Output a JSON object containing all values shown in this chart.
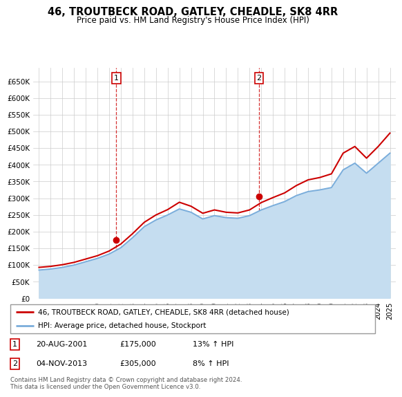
{
  "title": "46, TROUTBECK ROAD, GATLEY, CHEADLE, SK8 4RR",
  "subtitle": "Price paid vs. HM Land Registry's House Price Index (HPI)",
  "ylabel_ticks": [
    "£0",
    "£50K",
    "£100K",
    "£150K",
    "£200K",
    "£250K",
    "£300K",
    "£350K",
    "£400K",
    "£450K",
    "£500K",
    "£550K",
    "£600K",
    "£650K"
  ],
  "ytick_values": [
    0,
    50000,
    100000,
    150000,
    200000,
    250000,
    300000,
    350000,
    400000,
    450000,
    500000,
    550000,
    600000,
    650000
  ],
  "ylim": [
    0,
    690000
  ],
  "transaction1": {
    "date_idx": 6.6,
    "price": 175000,
    "label": "1",
    "date_str": "20-AUG-2001",
    "pct": "13% ↑ HPI"
  },
  "transaction2": {
    "date_idx": 18.8,
    "price": 305000,
    "label": "2",
    "date_str": "04-NOV-2013",
    "pct": "8% ↑ HPI"
  },
  "red_color": "#cc0000",
  "blue_color": "#7aaddb",
  "blue_fill": "#c5ddf0",
  "background_color": "#ffffff",
  "grid_color": "#cccccc",
  "legend_line1": "46, TROUTBECK ROAD, GATLEY, CHEADLE, SK8 4RR (detached house)",
  "legend_line2": "HPI: Average price, detached house, Stockport",
  "footnote": "Contains HM Land Registry data © Crown copyright and database right 2024.\nThis data is licensed under the Open Government Licence v3.0.",
  "years": [
    1995,
    1996,
    1997,
    1998,
    1999,
    2000,
    2001,
    2002,
    2003,
    2004,
    2005,
    2006,
    2007,
    2008,
    2009,
    2010,
    2011,
    2012,
    2013,
    2014,
    2015,
    2016,
    2017,
    2018,
    2019,
    2020,
    2021,
    2022,
    2023,
    2024,
    2025
  ],
  "hpi_values": [
    85000,
    88000,
    93000,
    100000,
    110000,
    120000,
    133000,
    152000,
    182000,
    215000,
    235000,
    250000,
    268000,
    258000,
    238000,
    248000,
    242000,
    240000,
    248000,
    265000,
    278000,
    290000,
    308000,
    320000,
    325000,
    332000,
    385000,
    405000,
    375000,
    405000,
    435000
  ],
  "red_values": [
    93000,
    96000,
    101000,
    108000,
    118000,
    128000,
    142000,
    163000,
    194000,
    228000,
    250000,
    266000,
    288000,
    276000,
    255000,
    265000,
    258000,
    256000,
    265000,
    287000,
    302000,
    316000,
    338000,
    355000,
    362000,
    373000,
    435000,
    455000,
    420000,
    455000,
    495000
  ],
  "note1_price": "£175,000",
  "note2_price": "£305,000"
}
